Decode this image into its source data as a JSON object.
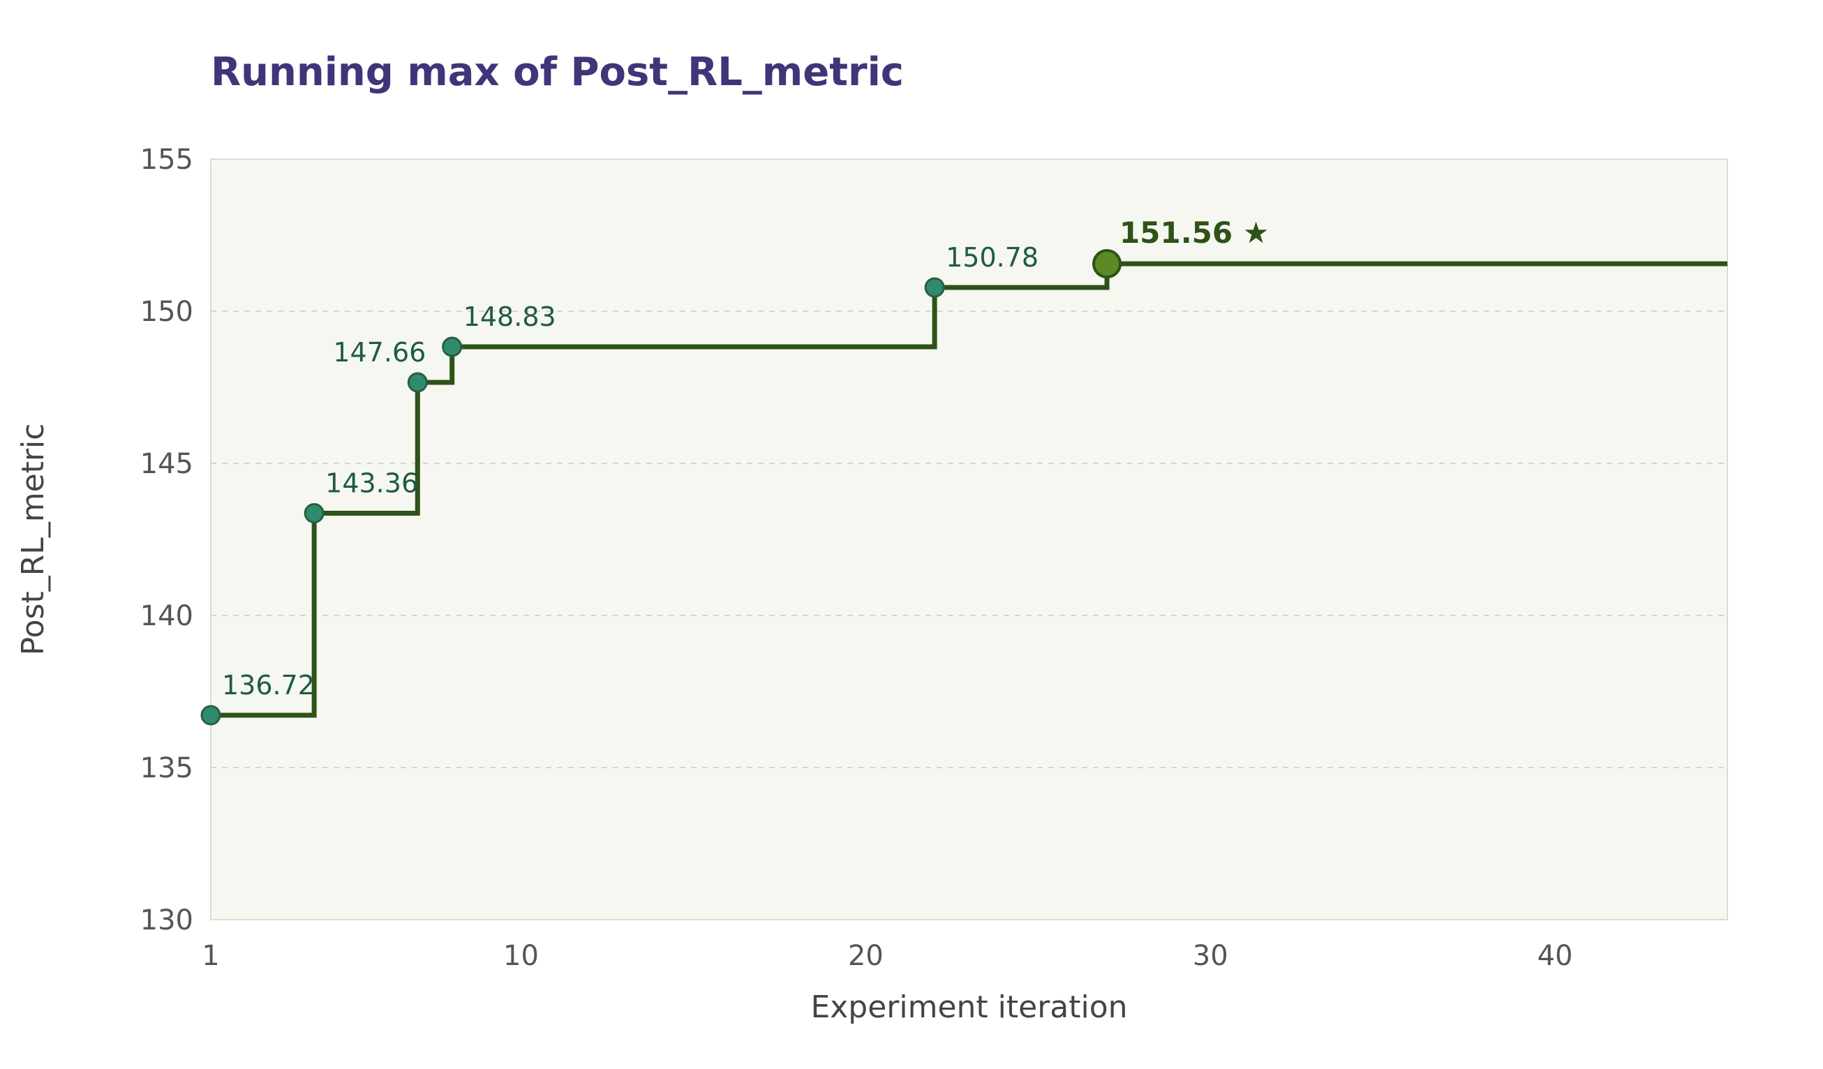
{
  "chart_data": {
    "type": "line",
    "step": "post",
    "title": "Running max of Post_RL_metric",
    "xlabel": "Experiment iteration",
    "ylabel": "Post_RL_metric",
    "xlim": [
      1,
      45
    ],
    "ylim": [
      130,
      155
    ],
    "x_ticks": [
      1,
      10,
      20,
      30,
      40
    ],
    "y_ticks": [
      130,
      135,
      140,
      145,
      150,
      155
    ],
    "grid": "horizontal-dashed",
    "series": [
      {
        "x": [
          1,
          4,
          7,
          8,
          22,
          27,
          45
        ],
        "y": [
          136.72,
          143.36,
          147.66,
          148.83,
          150.78,
          151.56,
          151.56
        ]
      }
    ],
    "points": [
      {
        "x": 1,
        "y": 136.72,
        "label": "136.72"
      },
      {
        "x": 4,
        "y": 143.36,
        "label": "143.36"
      },
      {
        "x": 7,
        "y": 147.66,
        "label": "147.66"
      },
      {
        "x": 8,
        "y": 148.83,
        "label": "148.83"
      },
      {
        "x": 22,
        "y": 150.78,
        "label": "150.78"
      }
    ],
    "best_point": {
      "x": 27,
      "y": 151.56,
      "label": "151.56",
      "marker": "★"
    },
    "colors": {
      "title": "#3f3579",
      "line": "#2e5218",
      "point_fill": "#2e8b6e",
      "point_stroke": "#2a5e44",
      "point_label": "#1f5a44",
      "best_fill": "#5b8a24",
      "best_stroke": "#2e5218",
      "best_label": "#2e5218",
      "plot_bg": "#f6f7f1",
      "plot_border": "#dcdcd6",
      "grid": "#d6d6d0"
    }
  }
}
